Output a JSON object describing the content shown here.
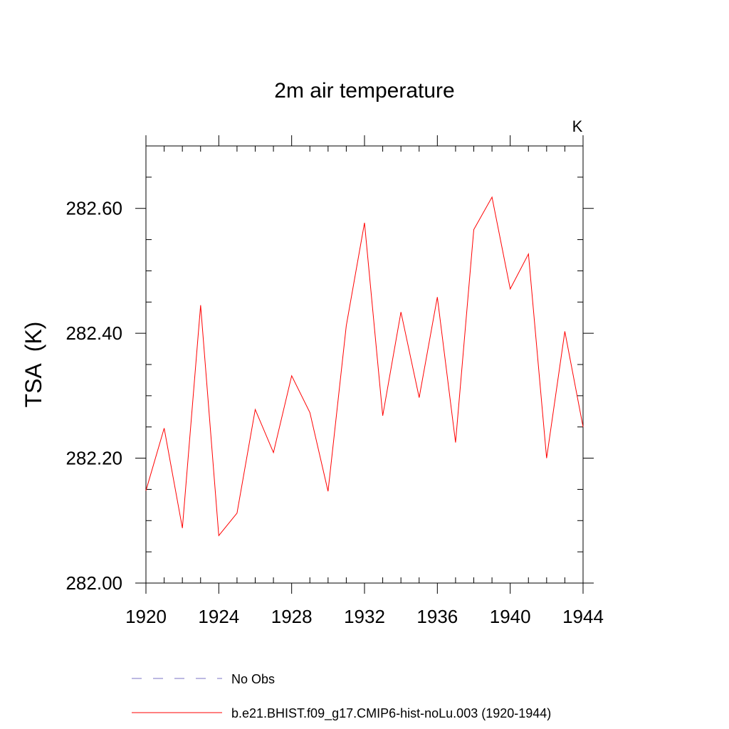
{
  "chart_data": {
    "type": "line",
    "title": "2m air temperature",
    "units_label": "K",
    "ylabel": "TSA  (K)",
    "xlabel": "",
    "xlim": [
      1920,
      1944
    ],
    "ylim": [
      282.0,
      282.7
    ],
    "x_ticks": [
      "1920",
      "1924",
      "1928",
      "1932",
      "1936",
      "1940",
      "1944"
    ],
    "y_ticks": [
      "282.00",
      "282.20",
      "282.40",
      "282.60"
    ],
    "grid": false,
    "series": [
      {
        "name": "b.e21.BHIST.f09_g17.CMIP6-hist-noLu.003 (1920-1944)",
        "color": "#ff0000",
        "x": [
          1920,
          1921,
          1922,
          1923,
          1924,
          1925,
          1926,
          1927,
          1928,
          1929,
          1930,
          1931,
          1932,
          1933,
          1934,
          1935,
          1936,
          1937,
          1938,
          1939,
          1940,
          1941,
          1942,
          1943,
          1944
        ],
        "y": [
          282.148,
          282.248,
          282.088,
          282.445,
          282.076,
          282.112,
          282.278,
          282.209,
          282.332,
          282.273,
          282.147,
          282.412,
          282.577,
          282.268,
          282.434,
          282.297,
          282.458,
          282.225,
          282.566,
          282.618,
          282.471,
          282.527,
          282.2,
          282.403,
          282.25
        ]
      }
    ],
    "legend": {
      "placement": "bottom",
      "entries": [
        {
          "label": "No Obs",
          "color": "#7a73c4",
          "style": "dashed"
        },
        {
          "label": "b.e21.BHIST.f09_g17.CMIP6-hist-noLu.003 (1920-1944)",
          "color": "#ff0000",
          "style": "solid"
        }
      ]
    }
  }
}
